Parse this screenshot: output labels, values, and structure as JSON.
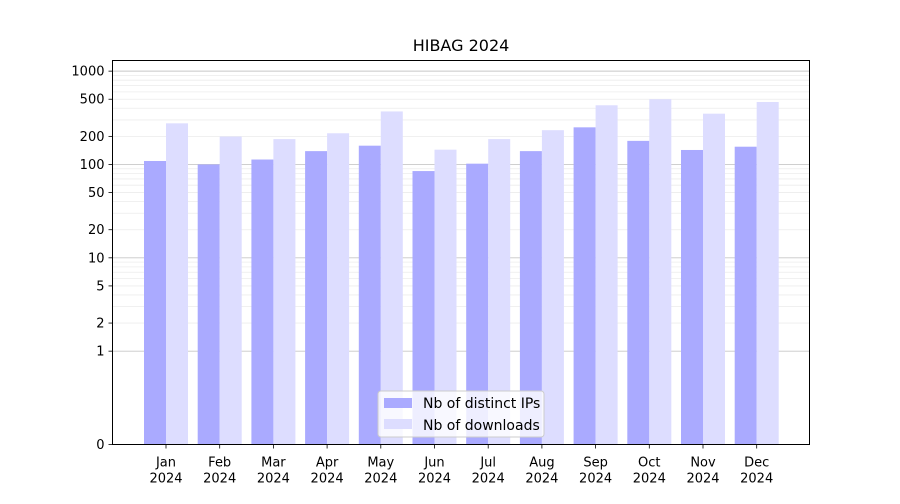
{
  "chart_data": {
    "type": "bar",
    "title": "HIBAG 2024",
    "xlabel": "",
    "ylabel": "",
    "y_scale": "symlog",
    "ylim": [
      0,
      1300
    ],
    "yticks": [
      0,
      1,
      2,
      5,
      10,
      20,
      50,
      100,
      200,
      500,
      1000
    ],
    "grid": true,
    "legend_position": "lower-center",
    "categories": [
      "Jan",
      "Feb",
      "Mar",
      "Apr",
      "May",
      "Jun",
      "Jul",
      "Aug",
      "Sep",
      "Oct",
      "Nov",
      "Dec"
    ],
    "category_year": "2024",
    "series": [
      {
        "name": "Nb of distinct IPs",
        "color": "#aaaaff",
        "values": [
          109,
          100,
          113,
          139,
          159,
          85,
          102,
          139,
          250,
          179,
          143,
          155
        ]
      },
      {
        "name": "Nb of downloads",
        "color": "#ddddff",
        "values": [
          276,
          199,
          187,
          216,
          370,
          144,
          187,
          233,
          431,
          500,
          350,
          467
        ]
      }
    ]
  }
}
